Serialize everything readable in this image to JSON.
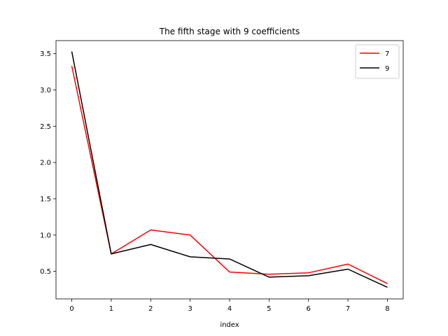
{
  "chart_data": {
    "type": "line",
    "title": "The fifth stage with 9 coefficients",
    "xlabel": "index",
    "ylabel": "",
    "x": [
      0,
      1,
      2,
      3,
      4,
      5,
      6,
      7,
      8
    ],
    "xticks": [
      "0",
      "1",
      "2",
      "3",
      "4",
      "5",
      "6",
      "7",
      "8"
    ],
    "yticks": [
      0.5,
      1.0,
      1.5,
      2.0,
      2.5,
      3.0,
      3.5
    ],
    "ytick_labels": [
      "0.5",
      "1.0",
      "1.5",
      "2.0",
      "2.5",
      "3.0",
      "3.5"
    ],
    "xlim": [
      -0.4,
      8.4
    ],
    "ylim": [
      0.12,
      3.68
    ],
    "grid": false,
    "legend_position": "top-right",
    "series": [
      {
        "name": "7",
        "color": "#ff0000",
        "values": [
          3.33,
          0.74,
          1.07,
          1.0,
          0.49,
          0.46,
          0.48,
          0.6,
          0.33
        ]
      },
      {
        "name": "9",
        "color": "#000000",
        "values": [
          3.53,
          0.74,
          0.87,
          0.7,
          0.67,
          0.42,
          0.44,
          0.53,
          0.28
        ]
      }
    ]
  }
}
